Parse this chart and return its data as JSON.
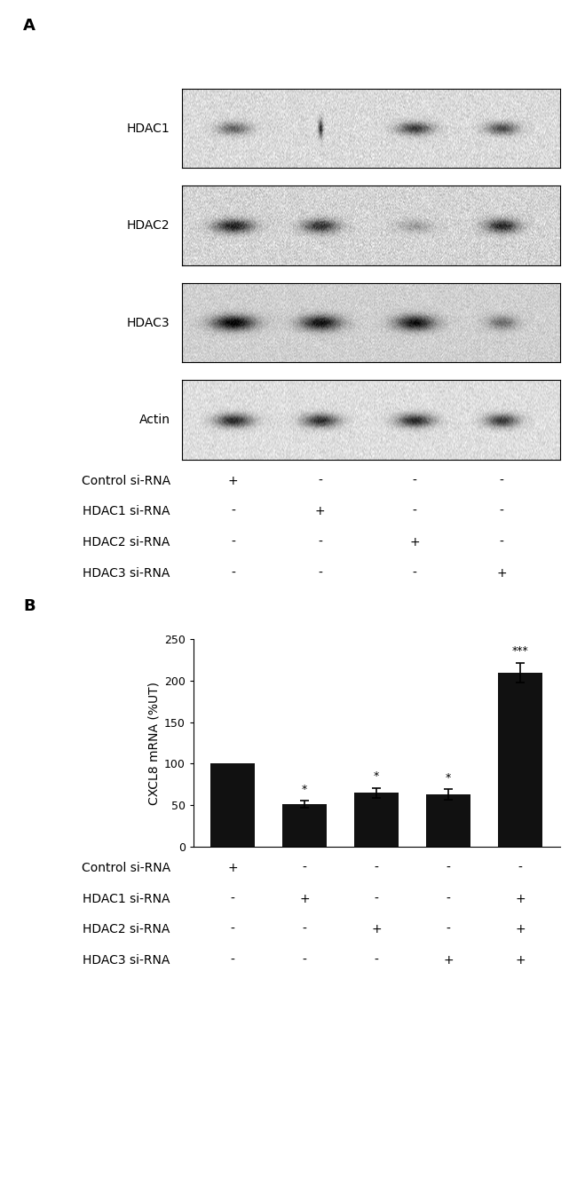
{
  "panel_a_label": "A",
  "panel_b_label": "B",
  "blot_labels": [
    "HDAC1",
    "HDAC2",
    "HDAC3",
    "Actin"
  ],
  "table_a_rows": [
    "Control si-RNA",
    "HDAC1 si-RNA",
    "HDAC2 si-RNA",
    "HDAC3 si-RNA"
  ],
  "table_a_data": [
    [
      "+",
      "-",
      "-",
      "-"
    ],
    [
      "-",
      "+",
      "-",
      "-"
    ],
    [
      "-",
      "-",
      "+",
      "-"
    ],
    [
      "-",
      "-",
      "-",
      "+"
    ]
  ],
  "bar_values": [
    100,
    51,
    65,
    63,
    210
  ],
  "bar_errors": [
    0,
    4,
    6,
    6,
    12
  ],
  "bar_color": "#111111",
  "bar_significance": [
    "",
    "*",
    "*",
    "*",
    "***"
  ],
  "ylabel": "CXCL8 mRNA (%UT)",
  "ylim": [
    0,
    250
  ],
  "yticks": [
    0,
    50,
    100,
    150,
    200,
    250
  ],
  "table_b_rows": [
    "Control si-RNA",
    "HDAC1 si-RNA",
    "HDAC2 si-RNA",
    "HDAC3 si-RNA"
  ],
  "table_b_data": [
    [
      "+",
      "-",
      "-",
      "-",
      "-"
    ],
    [
      "-",
      "+",
      "-",
      "-",
      "+"
    ],
    [
      "-",
      "-",
      "+",
      "-",
      "+"
    ],
    [
      "-",
      "-",
      "-",
      "+",
      "+"
    ]
  ],
  "background_color": "#ffffff",
  "font_size": 10,
  "label_font_size": 13
}
